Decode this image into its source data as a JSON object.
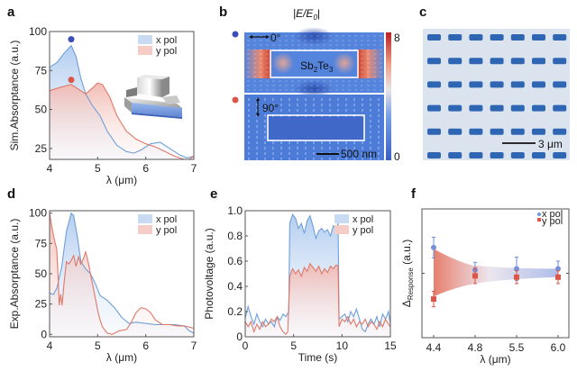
{
  "figure": {
    "panels": [
      "a",
      "b",
      "c",
      "d",
      "e",
      "f"
    ]
  },
  "colors": {
    "x_pol": "#6f9fd8",
    "y_pol": "#e07868",
    "x_marker": "#3a4fb5",
    "y_marker": "#d9574a",
    "map_blue": "#3f6fd0",
    "map_red": "#c9302c",
    "chip_bg": "#dbe4ee",
    "chip_block": "#2e66b3"
  },
  "chart_data": [
    {
      "panel": "a",
      "type": "area",
      "title": "",
      "xlabel": "λ (μm)",
      "ylabel": "Sim.Absorptance (a.u.)",
      "xlim": [
        4,
        7
      ],
      "ylim": [
        18,
        100
      ],
      "xticks": [
        "4",
        "5",
        "6",
        "7"
      ],
      "yticks": [
        "25",
        "50",
        "75",
        "100"
      ],
      "legend": [
        "x pol",
        "y pol"
      ],
      "legend_position": "top-right",
      "inset": "3D Sb2Te3 nanostructure on substrate",
      "markers": [
        {
          "series": "x pol",
          "x": 4.45,
          "y": 95
        },
        {
          "series": "y pol",
          "x": 4.45,
          "y": 69
        }
      ],
      "series": [
        {
          "name": "x pol",
          "x": [
            4.0,
            4.15,
            4.3,
            4.45,
            4.55,
            4.65,
            4.75,
            4.9,
            5.05,
            5.2,
            5.4,
            5.6,
            5.75,
            5.9,
            6.1,
            6.3,
            6.5,
            6.7,
            6.85,
            7.0
          ],
          "y": [
            77,
            80,
            86,
            91,
            84,
            70,
            60,
            52,
            46,
            36,
            27,
            23,
            22,
            24,
            28,
            29,
            25,
            21,
            19,
            20
          ]
        },
        {
          "name": "y pol",
          "x": [
            4.0,
            4.2,
            4.45,
            4.6,
            4.75,
            4.9,
            5.0,
            5.1,
            5.25,
            5.4,
            5.6,
            5.8,
            6.0,
            6.2,
            6.4,
            6.6,
            6.8,
            6.9,
            7.0
          ],
          "y": [
            62,
            64,
            66,
            63,
            60,
            64,
            67,
            66,
            58,
            46,
            36,
            31,
            28,
            26,
            23,
            20,
            18,
            18,
            20
          ]
        }
      ]
    },
    {
      "panel": "b",
      "type": "heatmap",
      "title": "|E/E0|",
      "colorbar_ticks": [
        "8",
        "0"
      ],
      "colorbar_range": [
        0,
        8
      ],
      "maps": [
        {
          "polarization_angle": "0°",
          "marker_series": "x pol",
          "material_label": "Sb2Te3"
        },
        {
          "polarization_angle": "90°",
          "marker_series": "y pol"
        }
      ],
      "scale_bar": "500 nm"
    },
    {
      "panel": "c",
      "type": "image",
      "description": "Microscope image of periodic nanoblock array",
      "grid_rows": 6,
      "grid_cols": 7,
      "scale_bar": "3 μm"
    },
    {
      "panel": "d",
      "type": "area",
      "xlabel": "λ (μm)",
      "ylabel": "Exp.Absorptance (a.u.)",
      "xlim": [
        4,
        7
      ],
      "ylim": [
        -2,
        102
      ],
      "xticks": [
        "4",
        "5",
        "6",
        "7"
      ],
      "yticks": [
        "0",
        "25",
        "50",
        "75",
        "100"
      ],
      "legend": [
        "x pol",
        "y pol"
      ],
      "legend_position": "top-right",
      "series": [
        {
          "name": "x pol",
          "x": [
            4.0,
            4.08,
            4.15,
            4.25,
            4.35,
            4.45,
            4.5,
            4.58,
            4.65,
            4.75,
            4.85,
            4.95,
            5.05,
            5.2,
            5.35,
            5.5,
            5.65,
            5.8,
            6.0,
            6.2,
            6.4,
            6.6,
            6.8,
            6.9,
            7.0
          ],
          "y": [
            34,
            33,
            38,
            55,
            85,
            100,
            98,
            80,
            60,
            54,
            50,
            42,
            32,
            28,
            22,
            14,
            9,
            10,
            9,
            8,
            8,
            8,
            7,
            3,
            1
          ]
        },
        {
          "name": "y pol",
          "x": [
            4.0,
            4.05,
            4.1,
            4.15,
            4.18,
            4.2,
            4.23,
            4.26,
            4.3,
            4.35,
            4.4,
            4.45,
            4.5,
            4.55,
            4.6,
            4.65,
            4.7,
            4.75,
            4.8,
            4.85,
            4.9,
            4.95,
            5.0,
            5.05,
            5.1,
            5.2,
            5.3,
            5.45,
            5.6,
            5.7,
            5.8,
            5.9,
            6.0,
            6.1,
            6.2,
            6.35,
            6.5,
            6.65,
            6.8,
            6.9,
            7.0
          ],
          "y": [
            100,
            88,
            78,
            70,
            45,
            24,
            33,
            24,
            42,
            60,
            58,
            61,
            65,
            56,
            64,
            58,
            62,
            68,
            60,
            50,
            40,
            30,
            20,
            12,
            6,
            1,
            0,
            3,
            4,
            10,
            18,
            22,
            21,
            18,
            12,
            8,
            8,
            7,
            7,
            6,
            5
          ]
        }
      ]
    },
    {
      "panel": "e",
      "type": "area",
      "xlabel": "Time (s)",
      "ylabel": "Photovoltage (a.u.)",
      "xlim": [
        0,
        15
      ],
      "ylim": [
        0,
        1.0
      ],
      "xticks": [
        "0",
        "5",
        "10",
        "15"
      ],
      "yticks": [
        "0",
        "0.2",
        "0.4",
        "0.6",
        "0.8",
        "1.0"
      ],
      "legend": [
        "x pol",
        "y pol"
      ],
      "legend_position": "top-right",
      "series": [
        {
          "name": "x pol",
          "x": [
            0,
            0.3,
            0.6,
            0.9,
            1.2,
            1.5,
            1.8,
            2.1,
            2.4,
            2.7,
            3.0,
            3.3,
            3.6,
            3.9,
            4.2,
            4.5,
            4.6,
            4.9,
            5.2,
            5.5,
            5.8,
            6.1,
            6.4,
            6.7,
            7.0,
            7.3,
            7.6,
            7.9,
            8.2,
            8.5,
            8.8,
            9.1,
            9.4,
            9.6,
            9.7,
            10.0,
            10.3,
            10.6,
            10.9,
            11.2,
            11.5,
            11.8,
            12.1,
            12.4,
            12.7,
            13.0,
            13.3,
            13.6,
            13.9,
            14.2,
            14.5,
            14.8,
            15.0
          ],
          "y": [
            0.15,
            0.24,
            0.16,
            0.1,
            0.18,
            0.12,
            0.08,
            0.14,
            0.1,
            0.12,
            0.08,
            0.16,
            0.13,
            0.18,
            0.16,
            0.2,
            0.9,
            0.97,
            0.94,
            0.86,
            0.9,
            0.82,
            0.92,
            0.96,
            0.88,
            0.78,
            0.84,
            0.86,
            0.83,
            0.85,
            0.8,
            0.88,
            0.86,
            0.9,
            0.14,
            0.16,
            0.18,
            0.12,
            0.2,
            0.16,
            0.22,
            0.14,
            0.06,
            0.04,
            0.1,
            0.14,
            0.1,
            0.16,
            0.08,
            0.18,
            0.14,
            0.2,
            0.1
          ]
        },
        {
          "name": "y pol",
          "x": [
            0,
            0.3,
            0.6,
            0.9,
            1.2,
            1.5,
            1.8,
            2.1,
            2.4,
            2.7,
            3.0,
            3.3,
            3.6,
            3.9,
            4.2,
            4.4,
            4.6,
            4.9,
            5.2,
            5.5,
            5.8,
            6.1,
            6.4,
            6.7,
            7.0,
            7.3,
            7.6,
            7.9,
            8.2,
            8.5,
            8.8,
            9.1,
            9.4,
            9.6,
            9.7,
            10.0,
            10.3,
            10.6,
            10.9,
            11.2,
            11.5,
            11.8,
            12.1,
            12.4,
            12.7,
            13.0,
            13.3,
            13.6,
            13.9,
            14.2,
            14.5,
            14.8,
            15.0
          ],
          "y": [
            0.12,
            0.08,
            0.12,
            0.04,
            0.1,
            0.06,
            0.12,
            0.08,
            0.1,
            0.14,
            0.12,
            0.16,
            0.08,
            0.04,
            0.02,
            0.04,
            0.48,
            0.54,
            0.5,
            0.53,
            0.48,
            0.55,
            0.52,
            0.58,
            0.55,
            0.52,
            0.56,
            0.5,
            0.54,
            0.51,
            0.56,
            0.54,
            0.57,
            0.56,
            0.08,
            0.14,
            0.12,
            0.16,
            0.1,
            0.14,
            0.08,
            0.12,
            0.1,
            0.14,
            0.08,
            0.12,
            0.1,
            0.06,
            0.12,
            0.08,
            0.14,
            0.1,
            0.08
          ]
        }
      ]
    },
    {
      "panel": "f",
      "type": "scatter",
      "xlabel": "λ (μm)",
      "ylabel": "ΔResponse (a.u.)",
      "ylabel_main": "Δ",
      "ylabel_sub": "Response",
      "ylabel_unit": "(a.u.)",
      "categories": [
        "4.4",
        "4.8",
        "5.5",
        "6.0"
      ],
      "ylim": [
        -1,
        1
      ],
      "yticks": [],
      "legend": [
        "x pol",
        "y pol"
      ],
      "legend_position": "top-right",
      "series": [
        {
          "name": "x pol",
          "values": [
            0.4,
            0.05,
            0.07,
            0.07
          ],
          "errors": [
            0.16,
            0.12,
            0.18,
            0.12
          ]
        },
        {
          "name": "y pol",
          "values": [
            -0.4,
            -0.04,
            -0.06,
            -0.06
          ],
          "errors": [
            0.12,
            0.12,
            0.1,
            0.1
          ]
        }
      ]
    }
  ],
  "labels": {
    "panel_a": "a",
    "panel_b": "b",
    "panel_c": "c",
    "panel_d": "d",
    "panel_e": "e",
    "panel_f": "f",
    "b_title_main": "|E/E",
    "b_title_sub": "0",
    "b_title_end": "|",
    "b_angle_top": "0°",
    "b_angle_bottom": "90°",
    "b_material_main": "Sb",
    "b_material_sub1": "2",
    "b_material_mid": "Te",
    "b_material_sub2": "3",
    "b_scale": "500 nm",
    "b_cbar_max": "8",
    "b_cbar_min": "0",
    "c_scale": "3 μm"
  }
}
